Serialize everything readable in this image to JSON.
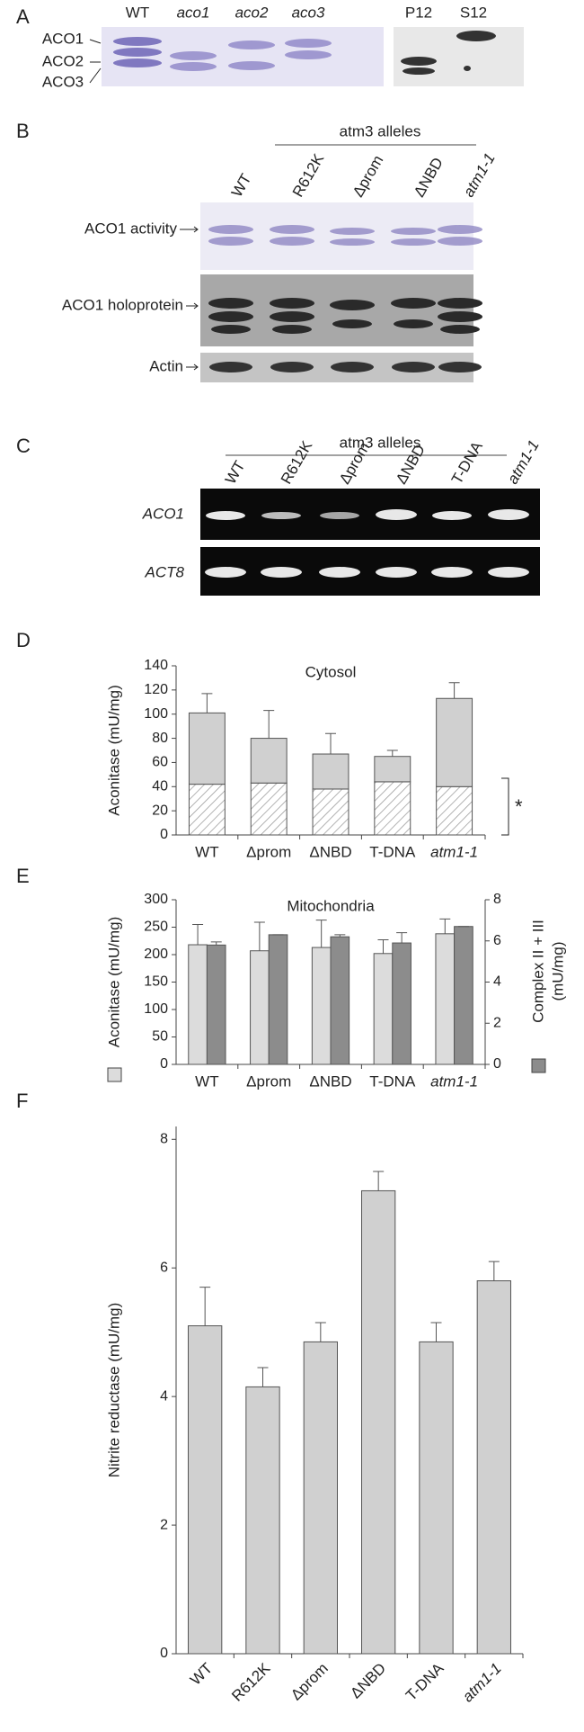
{
  "panel_a": {
    "letter": "A",
    "lanes": [
      "WT",
      "aco1",
      "aco2",
      "aco3",
      "P12",
      "S12"
    ],
    "bands": [
      "ACO1",
      "ACO2",
      "ACO3"
    ]
  },
  "panel_b": {
    "letter": "B",
    "group": "atm3 alleles",
    "lanes": [
      "WT",
      "R612K",
      "Δprom",
      "ΔNBD",
      "atm1-1"
    ],
    "rows": [
      "ACO1 activity",
      "ACO1 holoprotein",
      "Actin"
    ]
  },
  "panel_c": {
    "letter": "C",
    "group": "atm3 alleles",
    "lanes": [
      "WT",
      "R612K",
      "Δprom",
      "ΔNBD",
      "T-DNA",
      "atm1-1"
    ],
    "rows": [
      "ACO1",
      "ACT8"
    ]
  },
  "chart_data": [
    {
      "type": "bar",
      "letter": "D",
      "title": "Cytosol",
      "y_label": "Aconitase (mU/mg)",
      "stacked": true,
      "categories": [
        "WT",
        "Δprom",
        "ΔNBD",
        "T-DNA",
        "atm1-1"
      ],
      "series": [
        {
          "color": "#ffffff",
          "hatch": true,
          "values": [
            42,
            43,
            38,
            44,
            40
          ]
        },
        {
          "color": "#d0d0d0",
          "values": [
            59,
            37,
            29,
            21,
            73
          ],
          "errors": [
            16,
            23,
            17,
            5,
            13
          ]
        }
      ],
      "ylim": [
        0,
        140
      ],
      "yticks": [
        0,
        20,
        40,
        60,
        80,
        100,
        120,
        140
      ],
      "annotation": "*"
    },
    {
      "type": "bar",
      "letter": "E",
      "title": "Mitochondria",
      "y_label": "Aconitase (mU/mg)",
      "y2_label": [
        "Complex II + III",
        "(mU/mg)"
      ],
      "categories": [
        "WT",
        "Δprom",
        "ΔNBD",
        "T-DNA",
        "atm1-1"
      ],
      "series": [
        {
          "color": "#dcdcdc",
          "values": [
            218,
            207,
            213,
            202,
            238
          ],
          "errors": [
            37,
            52,
            50,
            25,
            27
          ]
        },
        {
          "color": "#8c8c8c",
          "axis": "y2",
          "values": [
            5.8,
            6.3,
            6.2,
            5.9,
            6.7
          ],
          "errors": [
            0.15,
            0,
            0.1,
            0.5,
            0
          ]
        }
      ],
      "ylim": [
        0,
        300
      ],
      "yticks": [
        0,
        50,
        100,
        150,
        200,
        250,
        300
      ],
      "y2lim": [
        0,
        8
      ],
      "y2ticks": [
        0,
        2,
        4,
        6,
        8
      ]
    },
    {
      "type": "bar",
      "letter": "F",
      "y_label": "Nitrite reductase (mU/mg)",
      "categories": [
        "WT",
        "R612K",
        "Δprom",
        "ΔNBD",
        "T-DNA",
        "atm1-1"
      ],
      "series": [
        {
          "color": "#d0d0d0",
          "values": [
            5.1,
            4.15,
            4.85,
            7.2,
            4.85,
            5.8
          ],
          "errors": [
            0.6,
            0.3,
            0.3,
            0.3,
            0.3,
            0.3
          ]
        }
      ],
      "ylim": [
        0,
        8.2
      ],
      "yticks": [
        0,
        2,
        4,
        6,
        8
      ]
    }
  ]
}
